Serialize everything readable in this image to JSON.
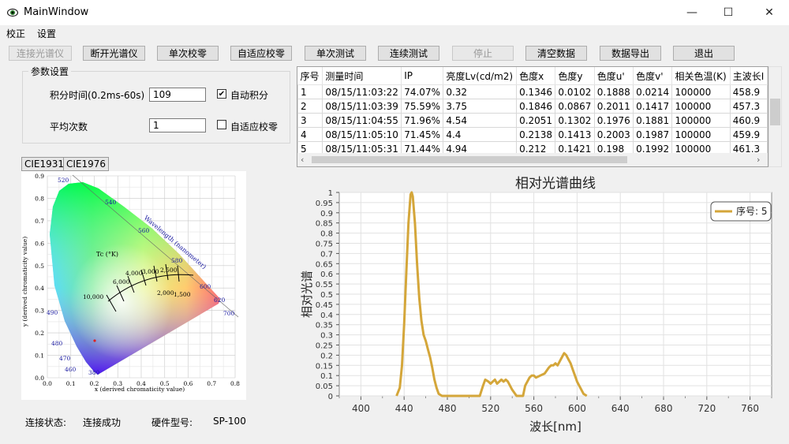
{
  "window": {
    "title": "MainWindow",
    "controls": {
      "minimize": "—",
      "maximize": "☐",
      "close": "✕"
    }
  },
  "menu": {
    "items": [
      "校正",
      "设置"
    ]
  },
  "toolbar": {
    "buttons": [
      {
        "label": "连接光谱仪",
        "enabled": false
      },
      {
        "label": "断开光谱仪",
        "enabled": true
      },
      {
        "label": "单次校零",
        "enabled": true
      },
      {
        "label": "自适应校零",
        "enabled": true
      },
      {
        "label": "单次测试",
        "enabled": true
      },
      {
        "label": "连续测试",
        "enabled": true
      },
      {
        "label": "停止",
        "enabled": false
      },
      {
        "label": "清空数据",
        "enabled": true
      },
      {
        "label": "数据导出",
        "enabled": true
      },
      {
        "label": "退出",
        "enabled": true
      }
    ]
  },
  "params": {
    "group_title": "参数设置",
    "integration_label": "积分时间(0.2ms-60s)",
    "integration_value": "109",
    "auto_integration_label": "自动积分",
    "auto_integration_checked": true,
    "average_label": "平均次数",
    "average_value": "1",
    "adaptive_zero_label": "自适应校零",
    "adaptive_zero_checked": false
  },
  "table": {
    "headers": [
      "序号",
      "测量时间",
      "IP",
      "亮度Lv(cd/m2)",
      "色度x",
      "色度y",
      "色度u'",
      "色度v'",
      "相关色温(K)",
      "主波长I"
    ],
    "rows": [
      [
        "1",
        "08/15/11:03:22",
        "74.07%",
        "0.32",
        "0.1346",
        "0.0102",
        "0.1888",
        "0.0214",
        "100000",
        "458.9"
      ],
      [
        "2",
        "08/15/11:03:39",
        "75.59%",
        "3.75",
        "0.1846",
        "0.0867",
        "0.2011",
        "0.1417",
        "100000",
        "457.3"
      ],
      [
        "3",
        "08/15/11:04:55",
        "71.96%",
        "4.54",
        "0.2051",
        "0.1302",
        "0.1976",
        "0.1881",
        "100000",
        "460.9"
      ],
      [
        "4",
        "08/15/11:05:10",
        "71.45%",
        "4.4",
        "0.2138",
        "0.1413",
        "0.2003",
        "0.1987",
        "100000",
        "459.9"
      ],
      [
        "5",
        "08/15/11:05:31",
        "71.44%",
        "4.94",
        "0.212",
        "0.1421",
        "0.198",
        "0.1992",
        "100000",
        "461.3"
      ]
    ]
  },
  "cie": {
    "tabs": [
      "CIE1931",
      "CIE1976"
    ],
    "active_tab": "CIE1931",
    "wavelength_labels": [
      "380",
      "460",
      "470",
      "480",
      "490",
      "520",
      "540",
      "560",
      "580",
      "600",
      "620",
      "700"
    ],
    "temperature_labels": [
      "10,000",
      "6,000",
      "4,000",
      "3,000",
      "2,500",
      "2,000",
      "1,500"
    ],
    "tc_label": "Tc (°K)",
    "locus_label": "Wavelength (nanometer)",
    "x_axis_label": "x (derived chromaticity value)",
    "y_axis_label": "y (derived chromaticity value)",
    "x_ticks": [
      "0.0",
      "0.1",
      "0.2",
      "0.3",
      "0.4",
      "0.5",
      "0.6",
      "0.7",
      "0.8"
    ],
    "y_ticks": [
      "0.0",
      "0.1",
      "0.2",
      "0.3",
      "0.4",
      "0.5",
      "0.6",
      "0.7",
      "0.8",
      "0.9"
    ]
  },
  "status": {
    "connection_label": "连接状态:",
    "connection_value": "连接成功",
    "hardware_label": "硬件型号:",
    "hardware_value": "SP-100"
  },
  "chart_data": {
    "type": "line",
    "title": "相对光谱曲线",
    "xlabel": "波长[nm]",
    "ylabel": "相对光谱",
    "xlim": [
      380,
      780
    ],
    "ylim": [
      0,
      1
    ],
    "x_ticks": [
      "400",
      "440",
      "480",
      "520",
      "560",
      "600",
      "640",
      "680",
      "720",
      "760"
    ],
    "y_ticks": [
      "0",
      "0.05",
      "0.1",
      "0.15",
      "0.2",
      "0.25",
      "0.3",
      "0.35",
      "0.4",
      "0.45",
      "0.5",
      "0.55",
      "0.6",
      "0.65",
      "0.7",
      "0.75",
      "0.8",
      "0.85",
      "0.9",
      "0.95",
      "1"
    ],
    "color": "#d4a63a",
    "legend_position": "top-right",
    "series": [
      {
        "name": "序号: 5",
        "x": [
          433,
          436,
          438,
          440,
          442,
          444,
          446,
          447,
          448,
          450,
          452,
          454,
          456,
          458,
          460,
          462,
          464,
          466,
          468,
          470,
          472,
          475,
          478,
          510,
          513,
          515,
          518,
          520,
          522,
          524,
          526,
          528,
          530,
          532,
          534,
          536,
          540,
          544,
          548,
          550,
          552,
          556,
          558,
          560,
          562,
          566,
          570,
          574,
          576,
          578,
          580,
          582,
          584,
          586,
          588,
          590,
          592,
          594,
          596,
          598,
          600,
          604,
          606,
          609
        ],
        "y": [
          0,
          0.04,
          0.15,
          0.35,
          0.6,
          0.85,
          0.99,
          1.0,
          0.98,
          0.85,
          0.65,
          0.48,
          0.37,
          0.3,
          0.27,
          0.23,
          0.19,
          0.14,
          0.08,
          0.04,
          0.01,
          0,
          0,
          0,
          0.05,
          0.08,
          0.07,
          0.06,
          0.07,
          0.08,
          0.06,
          0.07,
          0.08,
          0.07,
          0.08,
          0.07,
          0.03,
          0,
          0,
          0,
          0.05,
          0.09,
          0.1,
          0.1,
          0.09,
          0.1,
          0.11,
          0.14,
          0.15,
          0.15,
          0.16,
          0.15,
          0.17,
          0.19,
          0.21,
          0.2,
          0.18,
          0.16,
          0.13,
          0.1,
          0.07,
          0.03,
          0.01,
          0
        ]
      }
    ]
  }
}
